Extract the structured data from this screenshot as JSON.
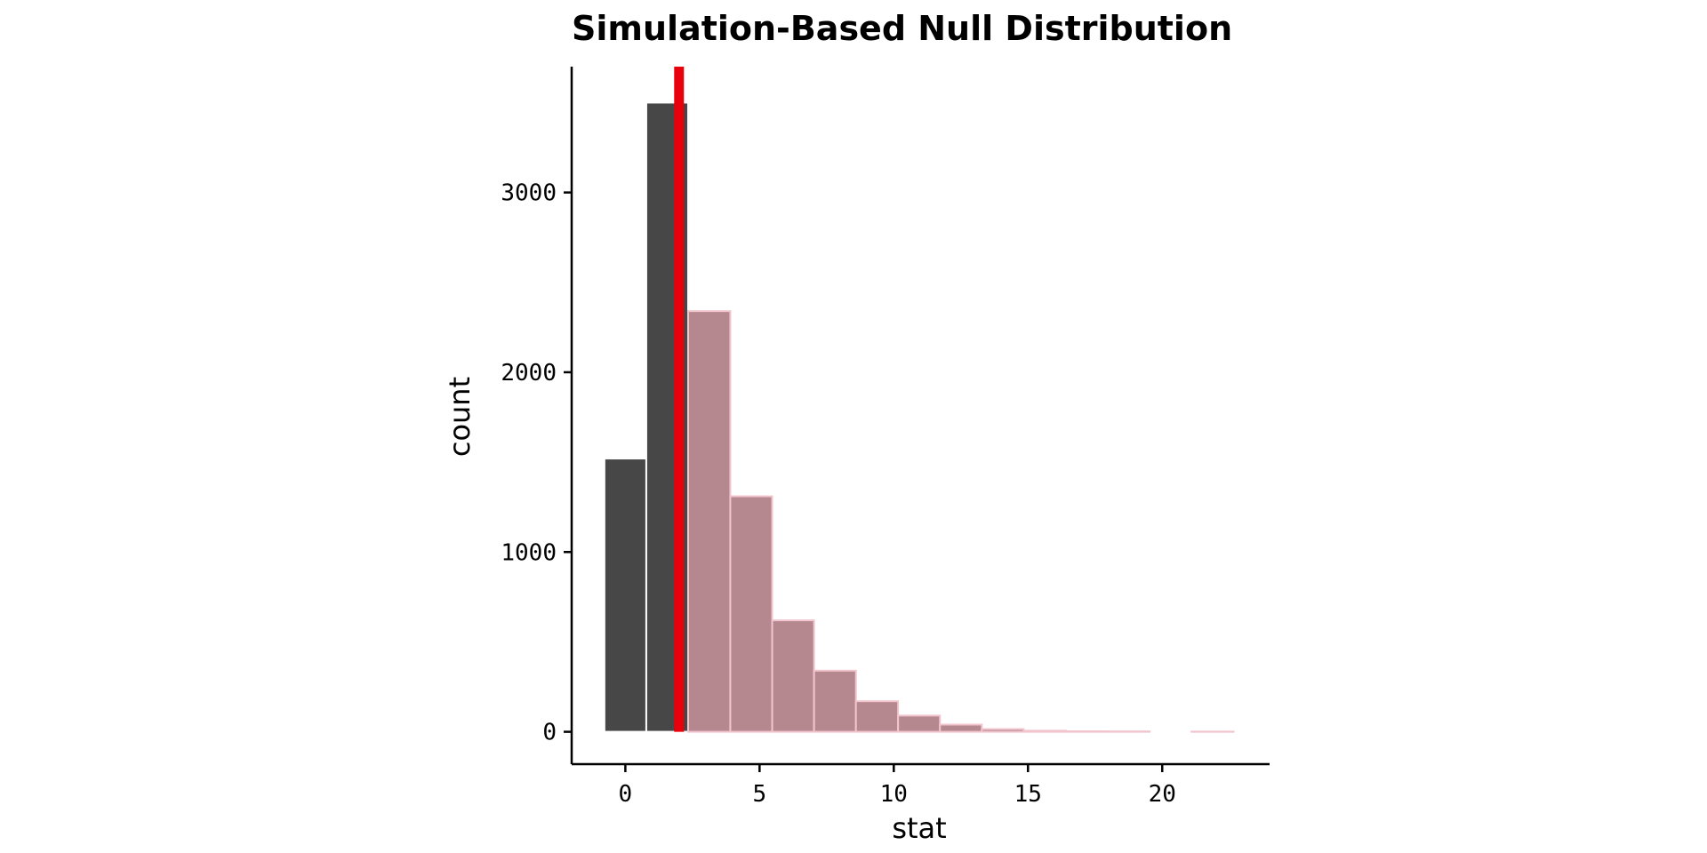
{
  "chart_data": {
    "type": "bar",
    "title": "Simulation-Based Null Distribution",
    "xlabel": "stat",
    "ylabel": "count",
    "xlim": [
      -2,
      24
    ],
    "ylim": [
      -180,
      3700
    ],
    "xticks": [
      0,
      5,
      10,
      15,
      20
    ],
    "xtick_labels": [
      "0",
      "5",
      "10",
      "15",
      "20"
    ],
    "yticks": [
      0,
      1000,
      2000,
      3000
    ],
    "ytick_labels": [
      "0",
      "1000",
      "2000",
      "3000"
    ],
    "bin_width": 1.5625,
    "bins": [
      {
        "x_start": -0.78,
        "x_end": 0.78,
        "count": 1520,
        "shaded": false
      },
      {
        "x_start": 0.78,
        "x_end": 2.34,
        "count": 3500,
        "shaded": false
      },
      {
        "x_start": 2.34,
        "x_end": 3.91,
        "count": 2340,
        "shaded": true
      },
      {
        "x_start": 3.91,
        "x_end": 5.47,
        "count": 1310,
        "shaded": true
      },
      {
        "x_start": 5.47,
        "x_end": 7.03,
        "count": 620,
        "shaded": true
      },
      {
        "x_start": 7.03,
        "x_end": 8.59,
        "count": 340,
        "shaded": true
      },
      {
        "x_start": 8.59,
        "x_end": 10.16,
        "count": 170,
        "shaded": true
      },
      {
        "x_start": 10.16,
        "x_end": 11.72,
        "count": 90,
        "shaded": true
      },
      {
        "x_start": 11.72,
        "x_end": 13.28,
        "count": 40,
        "shaded": true
      },
      {
        "x_start": 13.28,
        "x_end": 14.84,
        "count": 15,
        "shaded": true
      },
      {
        "x_start": 14.84,
        "x_end": 16.41,
        "count": 6,
        "shaded": true
      },
      {
        "x_start": 16.41,
        "x_end": 17.97,
        "count": 3,
        "shaded": true
      },
      {
        "x_start": 17.97,
        "x_end": 19.53,
        "count": 2,
        "shaded": true
      },
      {
        "x_start": 19.53,
        "x_end": 21.09,
        "count": 0,
        "shaded": true
      },
      {
        "x_start": 21.09,
        "x_end": 22.66,
        "count": 1,
        "shaded": true
      }
    ],
    "observed_stat": 2.0,
    "grid": false,
    "legend": "none",
    "colors": {
      "bar_fill": "#474747",
      "bar_edge": "#ffffff",
      "shade_fill": "#b5878f",
      "shade_edge": "#f2c4cd",
      "observed_line": "#e8000b",
      "axis": "#000000"
    }
  }
}
